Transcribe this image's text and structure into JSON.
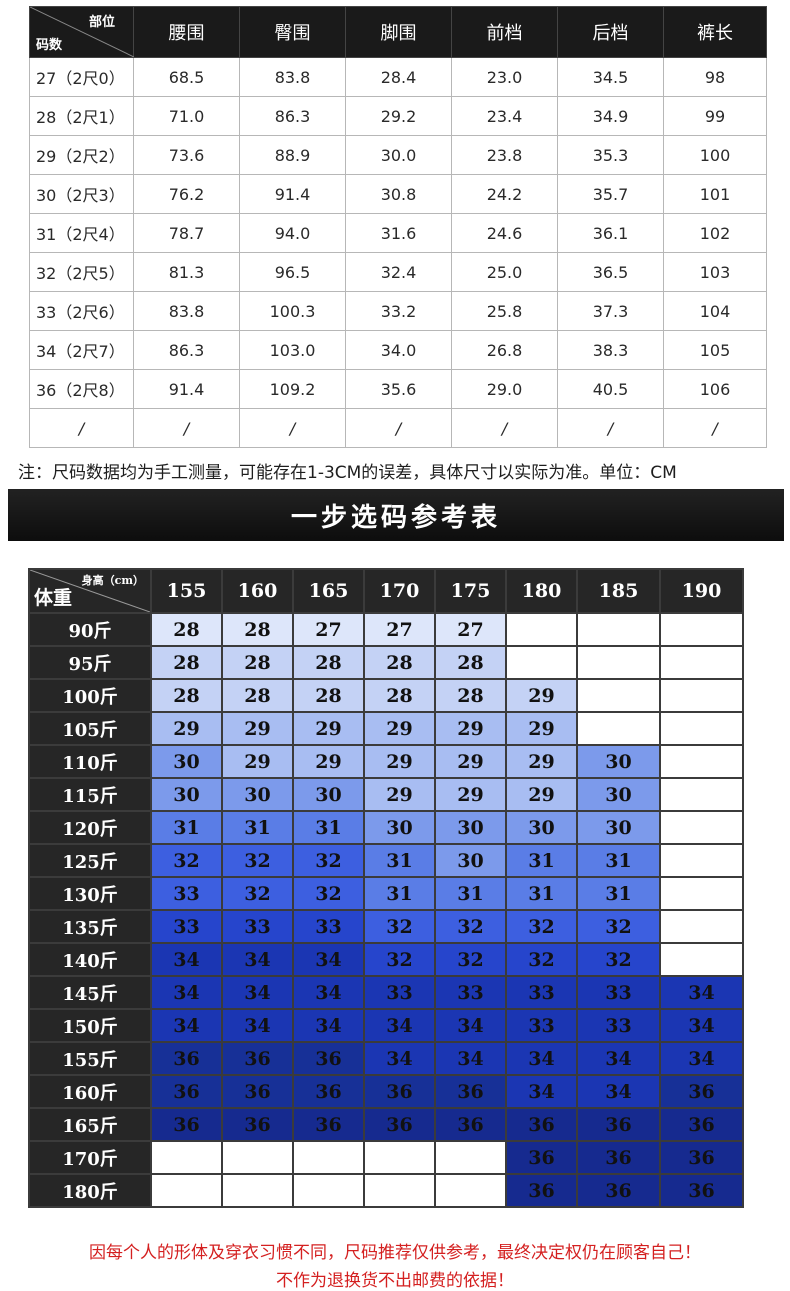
{
  "size_table": {
    "corner_top": "部位",
    "corner_bottom": "码数",
    "headers": [
      "腰围",
      "臀围",
      "脚围",
      "前档",
      "后档",
      "裤长"
    ],
    "rows": [
      {
        "size": "27（2尺0）",
        "cells": [
          "68.5",
          "83.8",
          "28.4",
          "23.0",
          "34.5",
          "98"
        ]
      },
      {
        "size": "28（2尺1）",
        "cells": [
          "71.0",
          "86.3",
          "29.2",
          "23.4",
          "34.9",
          "99"
        ]
      },
      {
        "size": "29（2尺2）",
        "cells": [
          "73.6",
          "88.9",
          "30.0",
          "23.8",
          "35.3",
          "100"
        ]
      },
      {
        "size": "30（2尺3）",
        "cells": [
          "76.2",
          "91.4",
          "30.8",
          "24.2",
          "35.7",
          "101"
        ]
      },
      {
        "size": "31（2尺4）",
        "cells": [
          "78.7",
          "94.0",
          "31.6",
          "24.6",
          "36.1",
          "102"
        ]
      },
      {
        "size": "32（2尺5）",
        "cells": [
          "81.3",
          "96.5",
          "32.4",
          "25.0",
          "36.5",
          "103"
        ]
      },
      {
        "size": "33（2尺6）",
        "cells": [
          "83.8",
          "100.3",
          "33.2",
          "25.8",
          "37.3",
          "104"
        ]
      },
      {
        "size": "34（2尺7）",
        "cells": [
          "86.3",
          "103.0",
          "34.0",
          "26.8",
          "38.3",
          "105"
        ]
      },
      {
        "size": "36（2尺8）",
        "cells": [
          "91.4",
          "109.2",
          "35.6",
          "29.0",
          "40.5",
          "106"
        ]
      }
    ],
    "slash": "/"
  },
  "note": "注：尺码数据均为手工测量，可能存在1-3CM的误差，具体尺寸以实际为准。单位：CM",
  "banner_title": "一步选码参考表",
  "ref_table": {
    "corner_top": "身高（cm）",
    "corner_bottom": "体重",
    "heights": [
      "155",
      "160",
      "165",
      "170",
      "175",
      "180",
      "185",
      "190"
    ],
    "weights": [
      "90斤",
      "95斤",
      "100斤",
      "105斤",
      "110斤",
      "115斤",
      "120斤",
      "125斤",
      "130斤",
      "135斤",
      "140斤",
      "145斤",
      "150斤",
      "155斤",
      "160斤",
      "165斤",
      "170斤",
      "180斤"
    ],
    "cells": [
      [
        "28",
        "28",
        "27",
        "27",
        "27",
        "",
        "",
        ""
      ],
      [
        "28",
        "28",
        "28",
        "28",
        "28",
        "",
        "",
        ""
      ],
      [
        "28",
        "28",
        "28",
        "28",
        "28",
        "29",
        "",
        ""
      ],
      [
        "29",
        "29",
        "29",
        "29",
        "29",
        "29",
        "",
        ""
      ],
      [
        "30",
        "29",
        "29",
        "29",
        "29",
        "29",
        "30",
        ""
      ],
      [
        "30",
        "30",
        "30",
        "29",
        "29",
        "29",
        "30",
        ""
      ],
      [
        "31",
        "31",
        "31",
        "30",
        "30",
        "30",
        "30",
        ""
      ],
      [
        "32",
        "32",
        "32",
        "31",
        "30",
        "31",
        "31",
        ""
      ],
      [
        "33",
        "32",
        "32",
        "31",
        "31",
        "31",
        "31",
        ""
      ],
      [
        "33",
        "33",
        "33",
        "32",
        "32",
        "32",
        "32",
        ""
      ],
      [
        "34",
        "34",
        "34",
        "32",
        "32",
        "32",
        "32",
        ""
      ],
      [
        "34",
        "34",
        "34",
        "33",
        "33",
        "33",
        "33",
        "34"
      ],
      [
        "34",
        "34",
        "34",
        "34",
        "34",
        "33",
        "33",
        "34"
      ],
      [
        "36",
        "36",
        "36",
        "34",
        "34",
        "34",
        "34",
        "34"
      ],
      [
        "36",
        "36",
        "36",
        "36",
        "36",
        "34",
        "34",
        "36"
      ],
      [
        "36",
        "36",
        "36",
        "36",
        "36",
        "36",
        "36",
        "36"
      ],
      [
        "",
        "",
        "",
        "",
        "",
        "36",
        "36",
        "36"
      ],
      [
        "",
        "",
        "",
        "",
        "",
        "36",
        "36",
        "36"
      ]
    ],
    "levels": [
      [
        1,
        1,
        1,
        1,
        1,
        0,
        0,
        0
      ],
      [
        2,
        2,
        2,
        2,
        2,
        0,
        0,
        0
      ],
      [
        2,
        2,
        2,
        2,
        2,
        2,
        0,
        0
      ],
      [
        3,
        3,
        3,
        3,
        3,
        3,
        0,
        0
      ],
      [
        4,
        3,
        3,
        3,
        3,
        3,
        4,
        0
      ],
      [
        4,
        4,
        4,
        3,
        3,
        3,
        4,
        0
      ],
      [
        5,
        5,
        5,
        4,
        4,
        4,
        4,
        0
      ],
      [
        6,
        6,
        6,
        5,
        4,
        5,
        5,
        0
      ],
      [
        6,
        6,
        6,
        5,
        5,
        5,
        5,
        0
      ],
      [
        7,
        7,
        7,
        6,
        6,
        6,
        6,
        0
      ],
      [
        8,
        8,
        8,
        7,
        7,
        7,
        7,
        0
      ],
      [
        8,
        8,
        8,
        8,
        8,
        8,
        8,
        8
      ],
      [
        8,
        8,
        8,
        8,
        8,
        8,
        8,
        8
      ],
      [
        9,
        9,
        9,
        8,
        8,
        8,
        8,
        8
      ],
      [
        9,
        9,
        9,
        9,
        9,
        8,
        8,
        9
      ],
      [
        10,
        10,
        10,
        10,
        10,
        10,
        10,
        10
      ],
      [
        0,
        0,
        0,
        0,
        0,
        10,
        10,
        10
      ],
      [
        0,
        0,
        0,
        0,
        0,
        10,
        10,
        10
      ]
    ]
  },
  "footer_line1": "因每个人的形体及穿衣习惯不同，尺码推荐仅供参考，最终决定权仍在顾客自己！",
  "footer_line2": "不作为退换货不出邮费的依据！"
}
